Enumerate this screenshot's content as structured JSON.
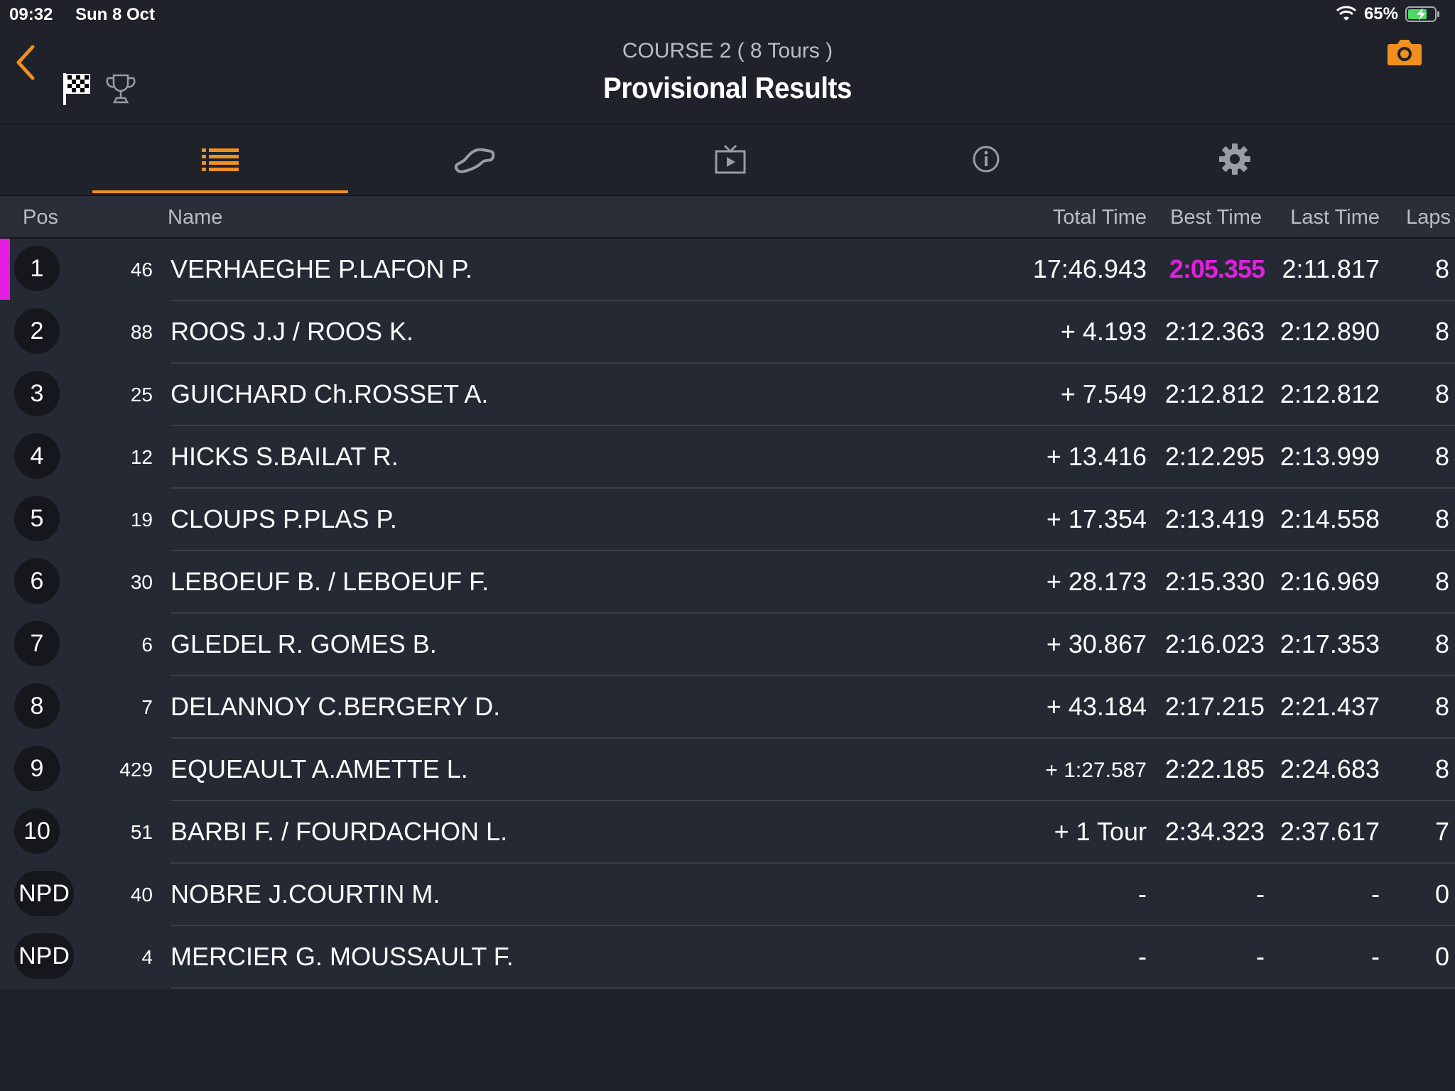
{
  "status_bar": {
    "time": "09:32",
    "date": "Sun 8 Oct",
    "battery": "65%"
  },
  "header": {
    "subtitle": "COURSE 2 ( 8 Tours )",
    "title": "Provisional Results"
  },
  "colors": {
    "accent": "#f0901e",
    "fastest": "#e41ee0",
    "background": "#1f222b",
    "row_background": "#252933"
  },
  "tabs": [
    {
      "icon": "list-icon",
      "active": true
    },
    {
      "icon": "track-icon",
      "active": false
    },
    {
      "icon": "tv-play-icon",
      "active": false
    },
    {
      "icon": "info-icon",
      "active": false
    },
    {
      "icon": "gear-icon",
      "active": false
    }
  ],
  "table": {
    "columns": {
      "pos": "Pos",
      "name": "Name",
      "total": "Total Time",
      "best": "Best Time",
      "last": "Last Time",
      "laps": "Laps"
    },
    "rows": [
      {
        "pos": "1",
        "num": "46",
        "name": "VERHAEGHE P.LAFON P.",
        "total": "17:46.943",
        "best": "2:05.355",
        "last": "2:11.817",
        "laps": "8"
      },
      {
        "pos": "2",
        "num": "88",
        "name": "ROOS J.J / ROOS K.",
        "total": "+ 4.193",
        "best": "2:12.363",
        "last": "2:12.890",
        "laps": "8"
      },
      {
        "pos": "3",
        "num": "25",
        "name": "GUICHARD Ch.ROSSET A.",
        "total": "+ 7.549",
        "best": "2:12.812",
        "last": "2:12.812",
        "laps": "8"
      },
      {
        "pos": "4",
        "num": "12",
        "name": "HICKS S.BAILAT R.",
        "total": "+ 13.416",
        "best": "2:12.295",
        "last": "2:13.999",
        "laps": "8"
      },
      {
        "pos": "5",
        "num": "19",
        "name": "CLOUPS P.PLAS P.",
        "total": "+ 17.354",
        "best": "2:13.419",
        "last": "2:14.558",
        "laps": "8"
      },
      {
        "pos": "6",
        "num": "30",
        "name": "LEBOEUF B. / LEBOEUF F.",
        "total": "+ 28.173",
        "best": "2:15.330",
        "last": "2:16.969",
        "laps": "8"
      },
      {
        "pos": "7",
        "num": "6",
        "name": "GLEDEL R. GOMES B.",
        "total": "+ 30.867",
        "best": "2:16.023",
        "last": "2:17.353",
        "laps": "8"
      },
      {
        "pos": "8",
        "num": "7",
        "name": "DELANNOY C.BERGERY D.",
        "total": "+ 43.184",
        "best": "2:17.215",
        "last": "2:21.437",
        "laps": "8"
      },
      {
        "pos": "9",
        "num": "429",
        "name": "EQUEAULT A.AMETTE L.",
        "total": "+ 1:27.587",
        "best": "2:22.185",
        "last": "2:24.683",
        "laps": "8"
      },
      {
        "pos": "10",
        "num": "51",
        "name": "BARBI F. / FOURDACHON L.",
        "total": "+ 1 Tour",
        "best": "2:34.323",
        "last": "2:37.617",
        "laps": "7"
      },
      {
        "pos": "NPD",
        "num": "40",
        "name": "NOBRE J.COURTIN M.",
        "total": "-",
        "best": "-",
        "last": "-",
        "laps": "0"
      },
      {
        "pos": "NPD",
        "num": "4",
        "name": "MERCIER G. MOUSSAULT F.",
        "total": "-",
        "best": "-",
        "last": "-",
        "laps": "0"
      }
    ]
  }
}
